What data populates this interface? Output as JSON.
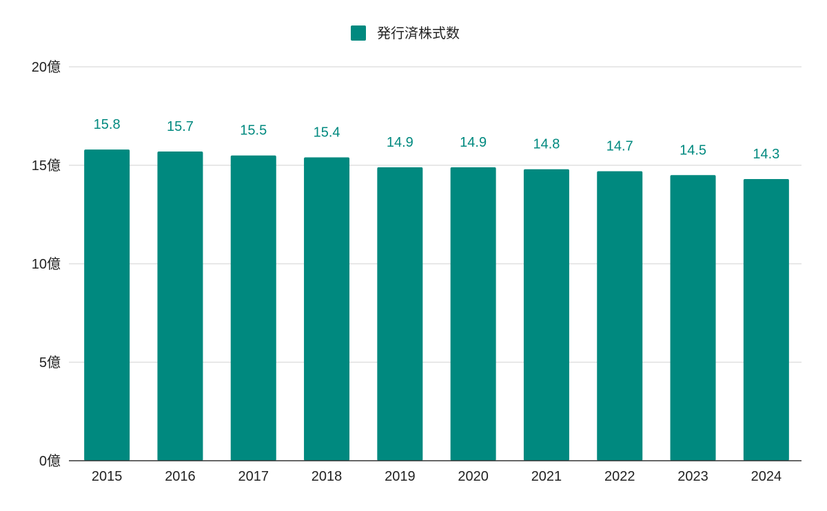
{
  "chart_data": {
    "type": "bar",
    "title": "",
    "xlabel": "",
    "ylabel": "",
    "categories": [
      "2015",
      "2016",
      "2017",
      "2018",
      "2019",
      "2020",
      "2021",
      "2022",
      "2023",
      "2024"
    ],
    "series": [
      {
        "name": "発行済株式数",
        "values": [
          15.8,
          15.7,
          15.5,
          15.4,
          14.9,
          14.9,
          14.8,
          14.7,
          14.5,
          14.3
        ],
        "data_labels": [
          "15.8",
          "15.7",
          "15.5",
          "15.4",
          "14.9",
          "14.9",
          "14.8",
          "14.7",
          "14.5",
          "14.3"
        ],
        "color": "#00897f"
      }
    ],
    "ylim": [
      0,
      20
    ],
    "y_ticks": [
      {
        "value": 0,
        "label": "0億"
      },
      {
        "value": 5,
        "label": "5億"
      },
      {
        "value": 10,
        "label": "10億"
      },
      {
        "value": 15,
        "label": "15億"
      },
      {
        "value": 20,
        "label": "20億"
      }
    ],
    "grid": true,
    "legend_position": "top-center"
  }
}
